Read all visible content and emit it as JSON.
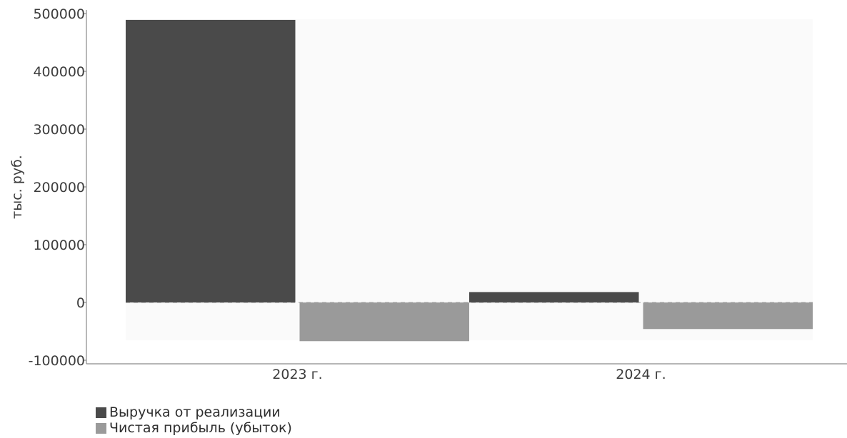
{
  "chart_data": {
    "type": "bar",
    "categories": [
      "2023 г.",
      "2024 г."
    ],
    "series": [
      {
        "name": "Выручка от реализации",
        "values": [
          489000,
          18000
        ],
        "color": "#4a4a4a"
      },
      {
        "name": "Чистая прибыль (убыток)",
        "values": [
          -67000,
          -46000
        ],
        "color": "#9a9a9a"
      }
    ],
    "ylabel": "тыс. руб.",
    "ylim": [
      -100000,
      500000
    ],
    "yticks": [
      "500000",
      "400000",
      "300000",
      "200000",
      "100000",
      "0",
      "-100000"
    ],
    "ytick_values": [
      500000,
      400000,
      300000,
      200000,
      100000,
      0,
      -100000
    ],
    "grid": false,
    "legend_position": "bottom-left"
  }
}
